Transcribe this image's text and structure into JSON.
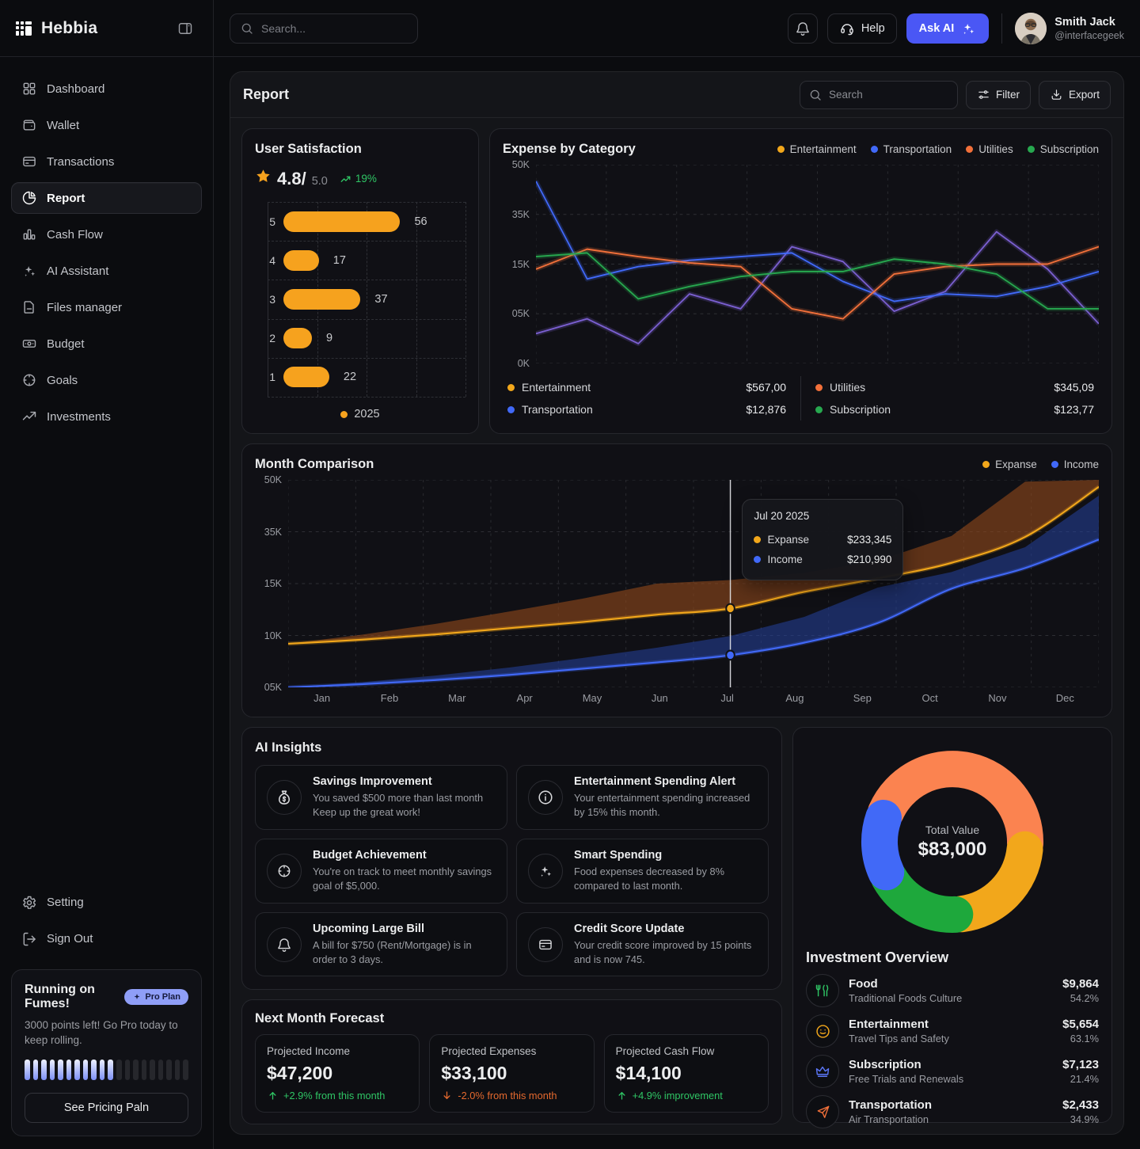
{
  "brand": {
    "name": "Hebbia"
  },
  "topbar": {
    "search_placeholder": "Search...",
    "help_label": "Help",
    "ask_ai_label": "Ask AI",
    "user": {
      "name": "Smith Jack",
      "handle": "@interfacegeek"
    }
  },
  "sidebar": {
    "items": [
      {
        "label": "Dashboard",
        "icon": "dashboard",
        "active": false
      },
      {
        "label": "Wallet",
        "icon": "wallet",
        "active": false
      },
      {
        "label": "Transactions",
        "icon": "credit-card",
        "active": false
      },
      {
        "label": "Report",
        "icon": "pie",
        "active": true
      },
      {
        "label": "Cash Flow",
        "icon": "bar-chart",
        "active": false
      },
      {
        "label": "AI Assistant",
        "icon": "sparkles",
        "active": false
      },
      {
        "label": "Files manager",
        "icon": "file",
        "active": false
      },
      {
        "label": "Budget",
        "icon": "banknote",
        "active": false
      },
      {
        "label": "Goals",
        "icon": "target",
        "active": false
      },
      {
        "label": "Investments",
        "icon": "trend",
        "active": false
      }
    ],
    "setting_label": "Setting",
    "signout_label": "Sign Out",
    "promo": {
      "title": "Running on Fumes!",
      "badge": "Pro Plan",
      "body": "3000 points left!  Go Pro today to keep rolling.",
      "button": "See Pricing Paln",
      "progress_total": 20,
      "progress_filled": 11
    }
  },
  "report_header": {
    "title": "Report",
    "search_placeholder": "Search",
    "filter_label": "Filter",
    "export_label": "Export"
  },
  "chart_data": [
    {
      "id": "user_satisfaction",
      "type": "bar",
      "title": "User Satisfaction",
      "rating": "4.8",
      "rating_divider": "/",
      "rating_max": "5.0",
      "trend": "19%",
      "categories": [
        "5",
        "4",
        "3",
        "2",
        "1"
      ],
      "values": [
        56,
        17,
        37,
        9,
        22
      ],
      "xlim": [
        0,
        60
      ],
      "bar_color": "#f6a21e",
      "legend": [
        {
          "label": "2025",
          "color": "#f6a21e"
        }
      ]
    },
    {
      "id": "expense_by_category",
      "type": "line",
      "title": "Expense by Category",
      "y_tick_labels": [
        "50K",
        "35K",
        "15K",
        "05K",
        "0K"
      ],
      "y_tick_values": [
        50,
        35,
        15,
        5,
        0
      ],
      "legend": [
        {
          "label": "Entertainment",
          "color": "#f2a71b"
        },
        {
          "label": "Transportation",
          "color": "#4169f8"
        },
        {
          "label": "Utilities",
          "color": "#f2703a"
        },
        {
          "label": "Subscription",
          "color": "#27a84f"
        }
      ],
      "series": [
        {
          "name": "Entertainment",
          "line_color": "#7a5fd0",
          "values": [
            3,
            4.5,
            2,
            9,
            6,
            22,
            16,
            5.5,
            9.5,
            28,
            14,
            4
          ]
        },
        {
          "name": "Transportation",
          "line_color": "#4169f8",
          "values": [
            45,
            12,
            14.5,
            16.5,
            18,
            19.5,
            11.5,
            7.5,
            9,
            8.5,
            10.5,
            13.5
          ]
        },
        {
          "name": "Utilities",
          "line_color": "#f2703a",
          "values": [
            14,
            21,
            18,
            15.5,
            14.5,
            6,
            4.5,
            13,
            14.5,
            15,
            15,
            22
          ]
        },
        {
          "name": "Subscription",
          "line_color": "#27a84f",
          "values": [
            18,
            19.5,
            8,
            10.5,
            12.5,
            13.5,
            13.5,
            17,
            15,
            13,
            6,
            6
          ]
        }
      ],
      "stats": [
        {
          "label": "Entertainment",
          "value": "$567,00",
          "color": "#f2a71b"
        },
        {
          "label": "Transportation",
          "value": "$12,876",
          "color": "#4169f8"
        },
        {
          "label": "Utilities",
          "value": "$345,09",
          "color": "#f2703a"
        },
        {
          "label": "Subscription",
          "value": "$123,77",
          "color": "#27a84f"
        }
      ]
    },
    {
      "id": "month_comparison",
      "type": "area",
      "title": "Month Comparison",
      "categories": [
        "Jan",
        "Feb",
        "Mar",
        "Apr",
        "May",
        "Jun",
        "Jul",
        "Aug",
        "Sep",
        "Oct",
        "Nov",
        "Dec"
      ],
      "y_tick_labels": [
        "50K",
        "35K",
        "15K",
        "10K",
        "05K"
      ],
      "y_tick_values": [
        50,
        35,
        15,
        10,
        5
      ],
      "legend": [
        {
          "label": "Expanse",
          "color": "#f2a71b"
        },
        {
          "label": "Income",
          "color": "#4169f8"
        }
      ],
      "series": [
        {
          "name": "Expanse",
          "line_color": "#f2a71b",
          "band_color": "rgba(146,74,26,0.6)",
          "band_growth": 0.55,
          "values": [
            9.2,
            9.6,
            10.1,
            10.7,
            11.3,
            12.0,
            12.6,
            14.2,
            17.0,
            23.0,
            33.0,
            48.0
          ]
        },
        {
          "name": "Income",
          "line_color": "#4169f8",
          "band_color": "rgba(36,66,158,0.55)",
          "band_growth": 0.42,
          "values": [
            5.0,
            5.3,
            5.7,
            6.2,
            6.8,
            7.4,
            8.1,
            9.3,
            11.2,
            14.5,
            21.0,
            32.0
          ]
        }
      ],
      "marker": {
        "month_index": 6
      },
      "tooltip": {
        "date": "Jul 20  2025",
        "rows": [
          {
            "label": "Expanse",
            "value": "$233,345",
            "color": "#f2a71b"
          },
          {
            "label": "Income",
            "value": "$210,990",
            "color": "#4169f8"
          }
        ]
      }
    },
    {
      "id": "investment_donut",
      "type": "pie",
      "center_label": "Total Value",
      "center_value": "$83,000",
      "rotation_deg": -66,
      "gap_deg": 5,
      "slices": [
        {
          "color": "#fb8350",
          "pct": 44
        },
        {
          "color": "#f2a71b",
          "pct": 21.5
        },
        {
          "color": "#1ea83c",
          "pct": 17.5
        },
        {
          "color": "#4169f7",
          "pct": 12.2
        }
      ]
    }
  ],
  "ai_insights": {
    "title": "AI Insights",
    "cards": [
      {
        "icon": "money-bag",
        "title": "Savings Improvement",
        "body": "You saved $500 more than last month Keep up the great work!"
      },
      {
        "icon": "info",
        "title": "Entertainment Spending Alert",
        "body": "Your entertainment spending increased by 15% this month."
      },
      {
        "icon": "target",
        "title": "Budget Achievement",
        "body": "You're on track to meet monthly savings goal of $5,000."
      },
      {
        "icon": "sparkles",
        "title": "Smart Spending",
        "body": "Food expenses decreased by 8% compared to last month."
      },
      {
        "icon": "bell",
        "title": "Upcoming Large Bill",
        "body": "A bill for $750 (Rent/Mortgage) is in order to 3 days."
      },
      {
        "icon": "credit-card",
        "title": "Credit Score Update",
        "body": "Your credit score improved by 15 points and is now 745."
      }
    ]
  },
  "forecast": {
    "title": "Next Month Forecast",
    "cards": [
      {
        "label": "Projected Income",
        "value": "$47,200",
        "delta": "+2.9% from this month",
        "direction": "up"
      },
      {
        "label": "Projected Expenses",
        "value": "$33,100",
        "delta": "-2.0% from this month",
        "direction": "down"
      },
      {
        "label": "Projected Cash Flow",
        "value": "$14,100",
        "delta": "+4.9% improvement",
        "direction": "up"
      }
    ]
  },
  "investment": {
    "title": "Investment Overview",
    "rows": [
      {
        "icon": "utensils",
        "icon_color": "#2fc665",
        "name": "Food",
        "desc": "Traditional Foods Culture",
        "amount": "$9,864",
        "pct": "54.2%"
      },
      {
        "icon": "smiley",
        "icon_color": "#f2a71b",
        "name": "Entertainment",
        "desc": "Travel Tips and Safety",
        "amount": "$5,654",
        "pct": "63.1%"
      },
      {
        "icon": "crown",
        "icon_color": "#5b76f7",
        "name": "Subscription",
        "desc": "Free Trials and Renewals",
        "amount": "$7,123",
        "pct": "21.4%"
      },
      {
        "icon": "plane",
        "icon_color": "#f2703a",
        "name": "Transportation",
        "desc": "Air Transportation",
        "amount": "$2,433",
        "pct": "34.9%"
      }
    ]
  }
}
